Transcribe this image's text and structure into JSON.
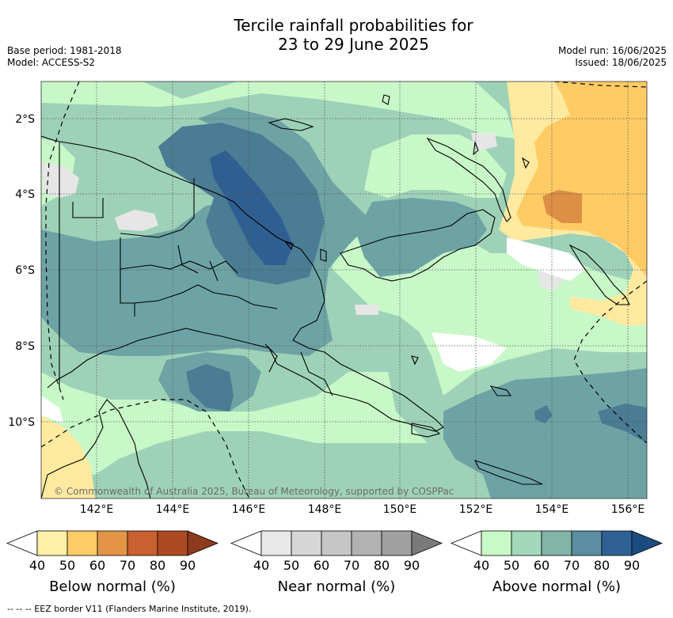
{
  "header": {
    "title_line1": "Tercile rainfall probabilities for",
    "title_line2": "23 to 29 June 2025",
    "base_period": "Base period: 1981-2018",
    "model": "Model: ACCESS-S2",
    "model_run": "Model run: 16/06/2025",
    "issued": "Issued: 18/06/2025"
  },
  "map": {
    "latitude_labels": [
      "2°S",
      "4°S",
      "6°S",
      "8°S",
      "10°S"
    ],
    "longitude_labels": [
      "142°E",
      "144°E",
      "146°E",
      "148°E",
      "150°E",
      "152°E",
      "154°E",
      "156°E"
    ],
    "copyright": "© Commonwealth of Australia 2025, Bureau of Meteorology, supported by COSPPac",
    "colors": {
      "ocean_default": "#ffffff",
      "above_50": "#c8f8c8",
      "above_60": "#9ed2b8",
      "above_70": "#6ea3a5",
      "above_80": "#4a7c94",
      "above_90": "#2f5f91",
      "below_50": "#ffeaa0",
      "below_60": "#ffcb64",
      "below_70": "#dd9045",
      "near_50": "#e6e6e6",
      "land_outline": "#000000",
      "grid": "#555555"
    }
  },
  "legends": [
    {
      "title": "Below normal (%)",
      "ticks": [
        "40",
        "50",
        "60",
        "70",
        "80",
        "90"
      ],
      "colors": [
        "#ffffff",
        "#fff0a8",
        "#ffcc66",
        "#e39445",
        "#c8602f",
        "#ad4a24",
        "#8e3a1c"
      ]
    },
    {
      "title": "Near normal (%)",
      "ticks": [
        "40",
        "50",
        "60",
        "70",
        "80",
        "90"
      ],
      "colors": [
        "#ffffff",
        "#e8e8e8",
        "#d6d6d6",
        "#c6c6c6",
        "#b2b2b2",
        "#a0a0a0",
        "#7a7a7a"
      ]
    },
    {
      "title": "Above normal (%)",
      "ticks": [
        "40",
        "50",
        "60",
        "70",
        "80",
        "90"
      ],
      "colors": [
        "#ffffff",
        "#c8fac8",
        "#a2d8bc",
        "#82b4a8",
        "#5a8ea0",
        "#2e6094",
        "#1b4b80"
      ]
    }
  ],
  "footnote": "--  --  -- EEZ border V11 (Flanders Marine Institute, 2019)."
}
